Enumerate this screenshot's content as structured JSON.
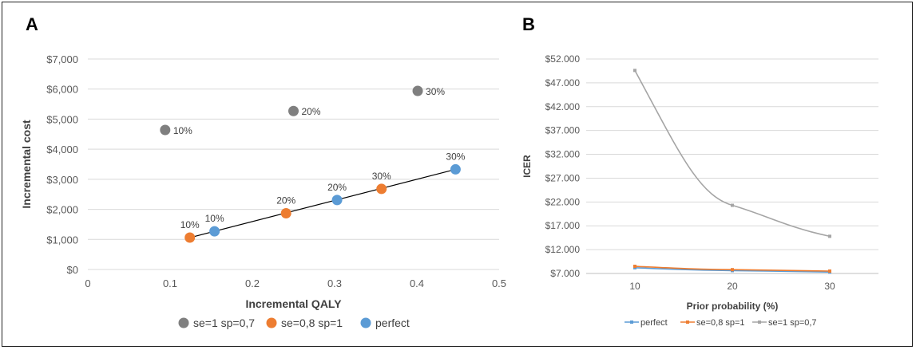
{
  "figure": {
    "panel_a_letter": "A",
    "panel_b_letter": "B"
  },
  "chart_data": [
    {
      "panel": "A",
      "type": "scatter",
      "xlabel": "Incremental QALY",
      "ylabel": "Incremental cost",
      "xlim": [
        0,
        0.5
      ],
      "ylim": [
        0,
        7000
      ],
      "x_ticks": [
        "0",
        "0.1",
        "0.2",
        "0.3",
        "0.4",
        "0.5"
      ],
      "y_ticks": [
        "$0",
        "$1,000",
        "$2,000",
        "$3,000",
        "$4,000",
        "$5,000",
        "$6,000",
        "$7,000"
      ],
      "x_tick_values": [
        0,
        0.1,
        0.2,
        0.3,
        0.4,
        0.5
      ],
      "y_tick_values": [
        0,
        1000,
        2000,
        3000,
        4000,
        5000,
        6000,
        7000
      ],
      "grid": "horizontal",
      "legend_position": "bottom",
      "series": [
        {
          "name": "se=1 sp=0,7",
          "color": "#7f7f7f",
          "points": [
            {
              "x": 0.094,
              "y": 4640,
              "label": "10%"
            },
            {
              "x": 0.25,
              "y": 5270,
              "label": "20%"
            },
            {
              "x": 0.401,
              "y": 5940,
              "label": "30%"
            }
          ]
        },
        {
          "name": "se=0,8 sp=1",
          "color": "#ed7d31",
          "points": [
            {
              "x": 0.124,
              "y": 1060,
              "label": "10%"
            },
            {
              "x": 0.241,
              "y": 1870,
              "label": "20%"
            },
            {
              "x": 0.357,
              "y": 2680,
              "label": "30%"
            }
          ]
        },
        {
          "name": "perfect",
          "color": "#5b9bd5",
          "points": [
            {
              "x": 0.154,
              "y": 1270,
              "label": "10%"
            },
            {
              "x": 0.303,
              "y": 2310,
              "label": "20%"
            },
            {
              "x": 0.447,
              "y": 3330,
              "label": "30%"
            }
          ]
        }
      ],
      "trendline": {
        "x": [
          0.124,
          0.447
        ],
        "y": [
          1060,
          3330
        ],
        "color": "#000000"
      }
    },
    {
      "panel": "B",
      "type": "line",
      "xlabel": "Prior probability (%)",
      "ylabel": "ICER",
      "x": [
        10,
        20,
        30
      ],
      "x_ticks": [
        "10",
        "20",
        "30"
      ],
      "y_ticks": [
        "$7.000",
        "$12.000",
        "$17.000",
        "$22.000",
        "$27.000",
        "$32.000",
        "$37.000",
        "$42.000",
        "$47.000",
        "$52.000"
      ],
      "y_tick_values": [
        7000,
        12000,
        17000,
        22000,
        27000,
        32000,
        37000,
        42000,
        47000,
        52000
      ],
      "ylim": [
        7000,
        52000
      ],
      "grid": "horizontal",
      "legend_position": "bottom",
      "series": [
        {
          "name": "perfect",
          "color": "#5b9bd5",
          "values": [
            8200,
            7600,
            7300
          ]
        },
        {
          "name": "se=0,8 sp=1",
          "color": "#ed7d31",
          "values": [
            8500,
            7800,
            7500
          ]
        },
        {
          "name": "se=1 sp=0,7",
          "color": "#a5a5a5",
          "values": [
            49600,
            21300,
            14800
          ]
        }
      ]
    }
  ]
}
